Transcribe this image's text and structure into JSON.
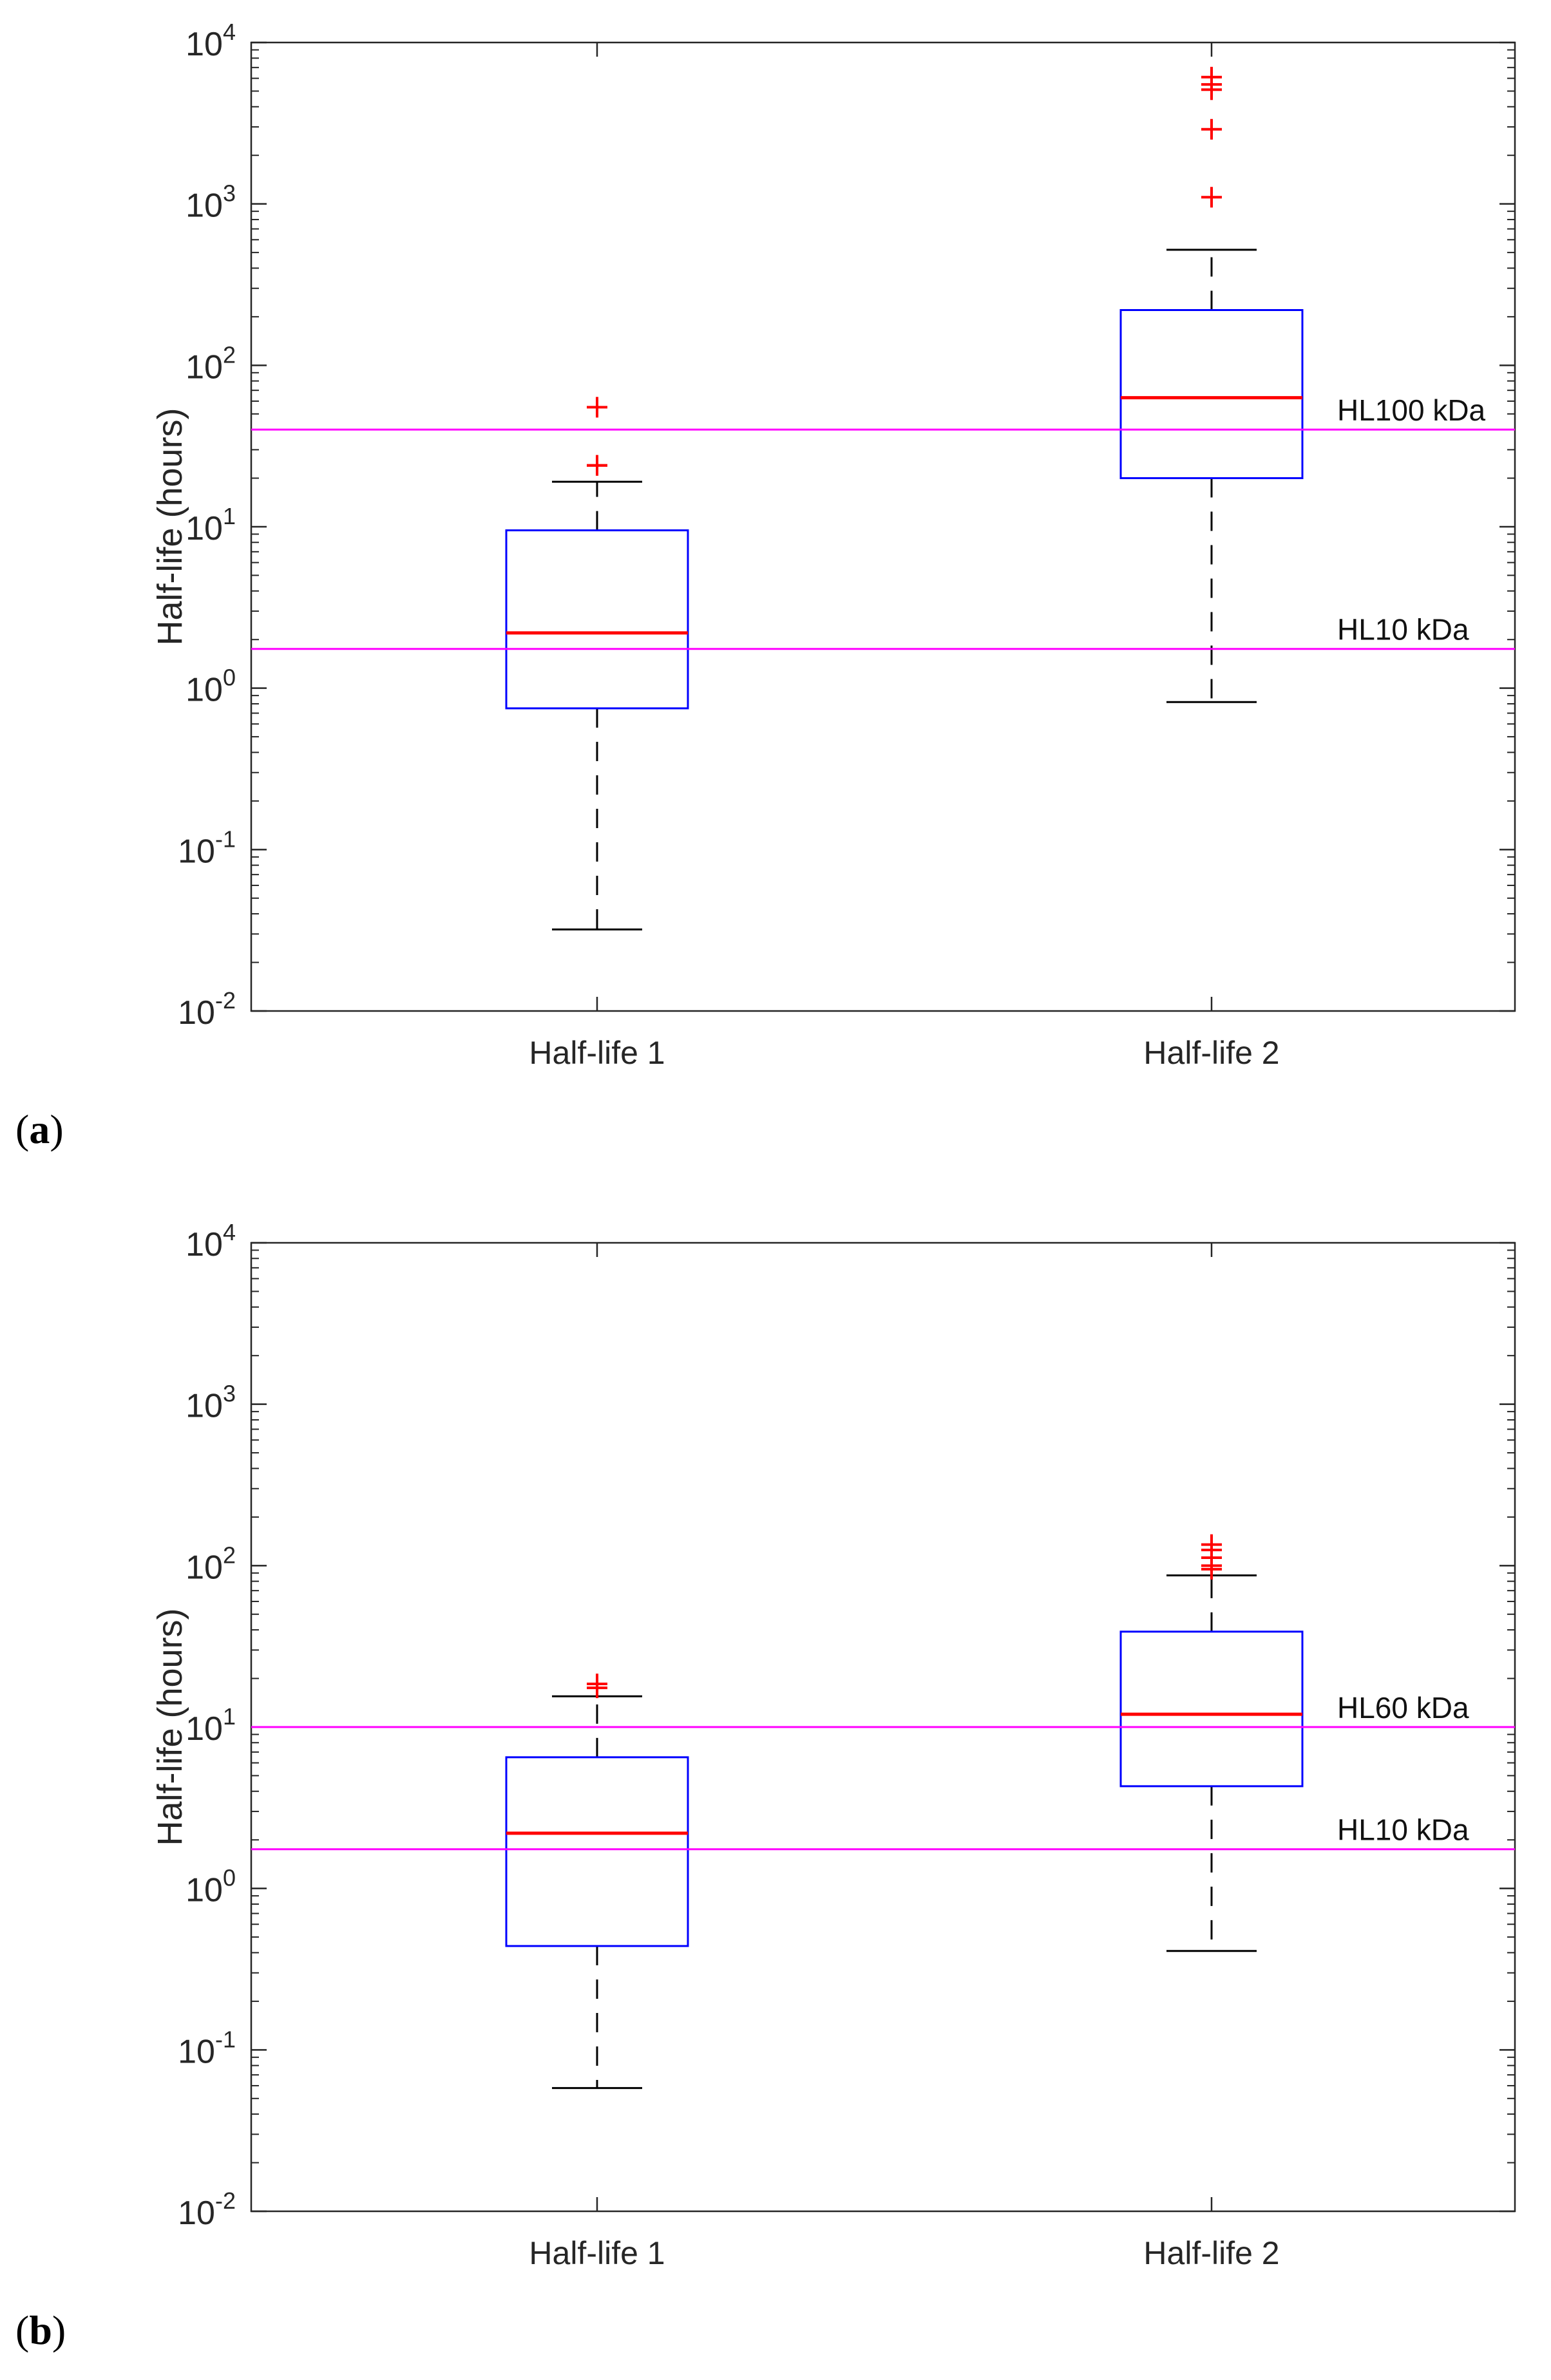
{
  "figure": {
    "panels": [
      "(a)",
      "(b)"
    ]
  },
  "chart_data": [
    {
      "type": "box",
      "panel_label": "a",
      "ylabel": "Half-life (hours)",
      "yscale": "log",
      "ylim": [
        0.01,
        10000
      ],
      "ytick_labels": [
        {
          "base": "10",
          "exp": "-2",
          "value": 0.01
        },
        {
          "base": "10",
          "exp": "-1",
          "value": 0.1
        },
        {
          "base": "10",
          "exp": "0",
          "value": 1
        },
        {
          "base": "10",
          "exp": "1",
          "value": 10
        },
        {
          "base": "10",
          "exp": "2",
          "value": 100
        },
        {
          "base": "10",
          "exp": "3",
          "value": 1000
        },
        {
          "base": "10",
          "exp": "4",
          "value": 10000
        }
      ],
      "categories": [
        "Half-life 1",
        "Half-life 2"
      ],
      "boxes": [
        {
          "name": "Half-life 1",
          "whisker_low": 0.032,
          "q1": 0.75,
          "median": 2.2,
          "q3": 9.5,
          "whisker_high": 19,
          "outliers": [
            24,
            24,
            55
          ]
        },
        {
          "name": "Half-life 2",
          "whisker_low": 0.82,
          "q1": 20,
          "median": 63,
          "q3": 220,
          "whisker_high": 520,
          "outliers": [
            1100,
            2900,
            5100,
            5500,
            6100
          ]
        }
      ],
      "reference_lines": [
        {
          "label": "HL100 kDa",
          "value": 40,
          "color": "#ff00ff"
        },
        {
          "label": "HL10 kDa",
          "value": 1.75,
          "color": "#ff00ff"
        }
      ],
      "colors": {
        "box": "#0000ff",
        "median": "#ff0000",
        "outlier": "#ff0000",
        "whisker": "#000000"
      }
    },
    {
      "type": "box",
      "panel_label": "b",
      "ylabel": "Half-life (hours)",
      "yscale": "log",
      "ylim": [
        0.01,
        10000
      ],
      "ytick_labels": [
        {
          "base": "10",
          "exp": "-2",
          "value": 0.01
        },
        {
          "base": "10",
          "exp": "-1",
          "value": 0.1
        },
        {
          "base": "10",
          "exp": "0",
          "value": 1
        },
        {
          "base": "10",
          "exp": "1",
          "value": 10
        },
        {
          "base": "10",
          "exp": "2",
          "value": 100
        },
        {
          "base": "10",
          "exp": "3",
          "value": 1000
        },
        {
          "base": "10",
          "exp": "4",
          "value": 10000
        }
      ],
      "categories": [
        "Half-life 1",
        "Half-life 2"
      ],
      "boxes": [
        {
          "name": "Half-life 1",
          "whisker_low": 0.058,
          "q1": 0.44,
          "median": 2.2,
          "q3": 6.5,
          "whisker_high": 15.5,
          "outliers": [
            17.5,
            18.5
          ]
        },
        {
          "name": "Half-life 2",
          "whisker_low": 0.41,
          "q1": 4.3,
          "median": 12,
          "q3": 39,
          "whisker_high": 87,
          "outliers": [
            95,
            100,
            112,
            125,
            135
          ]
        }
      ],
      "reference_lines": [
        {
          "label": "HL60 kDa",
          "value": 10,
          "color": "#ff00ff"
        },
        {
          "label": "HL10 kDa",
          "value": 1.75,
          "color": "#ff00ff"
        }
      ],
      "colors": {
        "box": "#0000ff",
        "median": "#ff0000",
        "outlier": "#ff0000",
        "whisker": "#000000"
      }
    }
  ]
}
